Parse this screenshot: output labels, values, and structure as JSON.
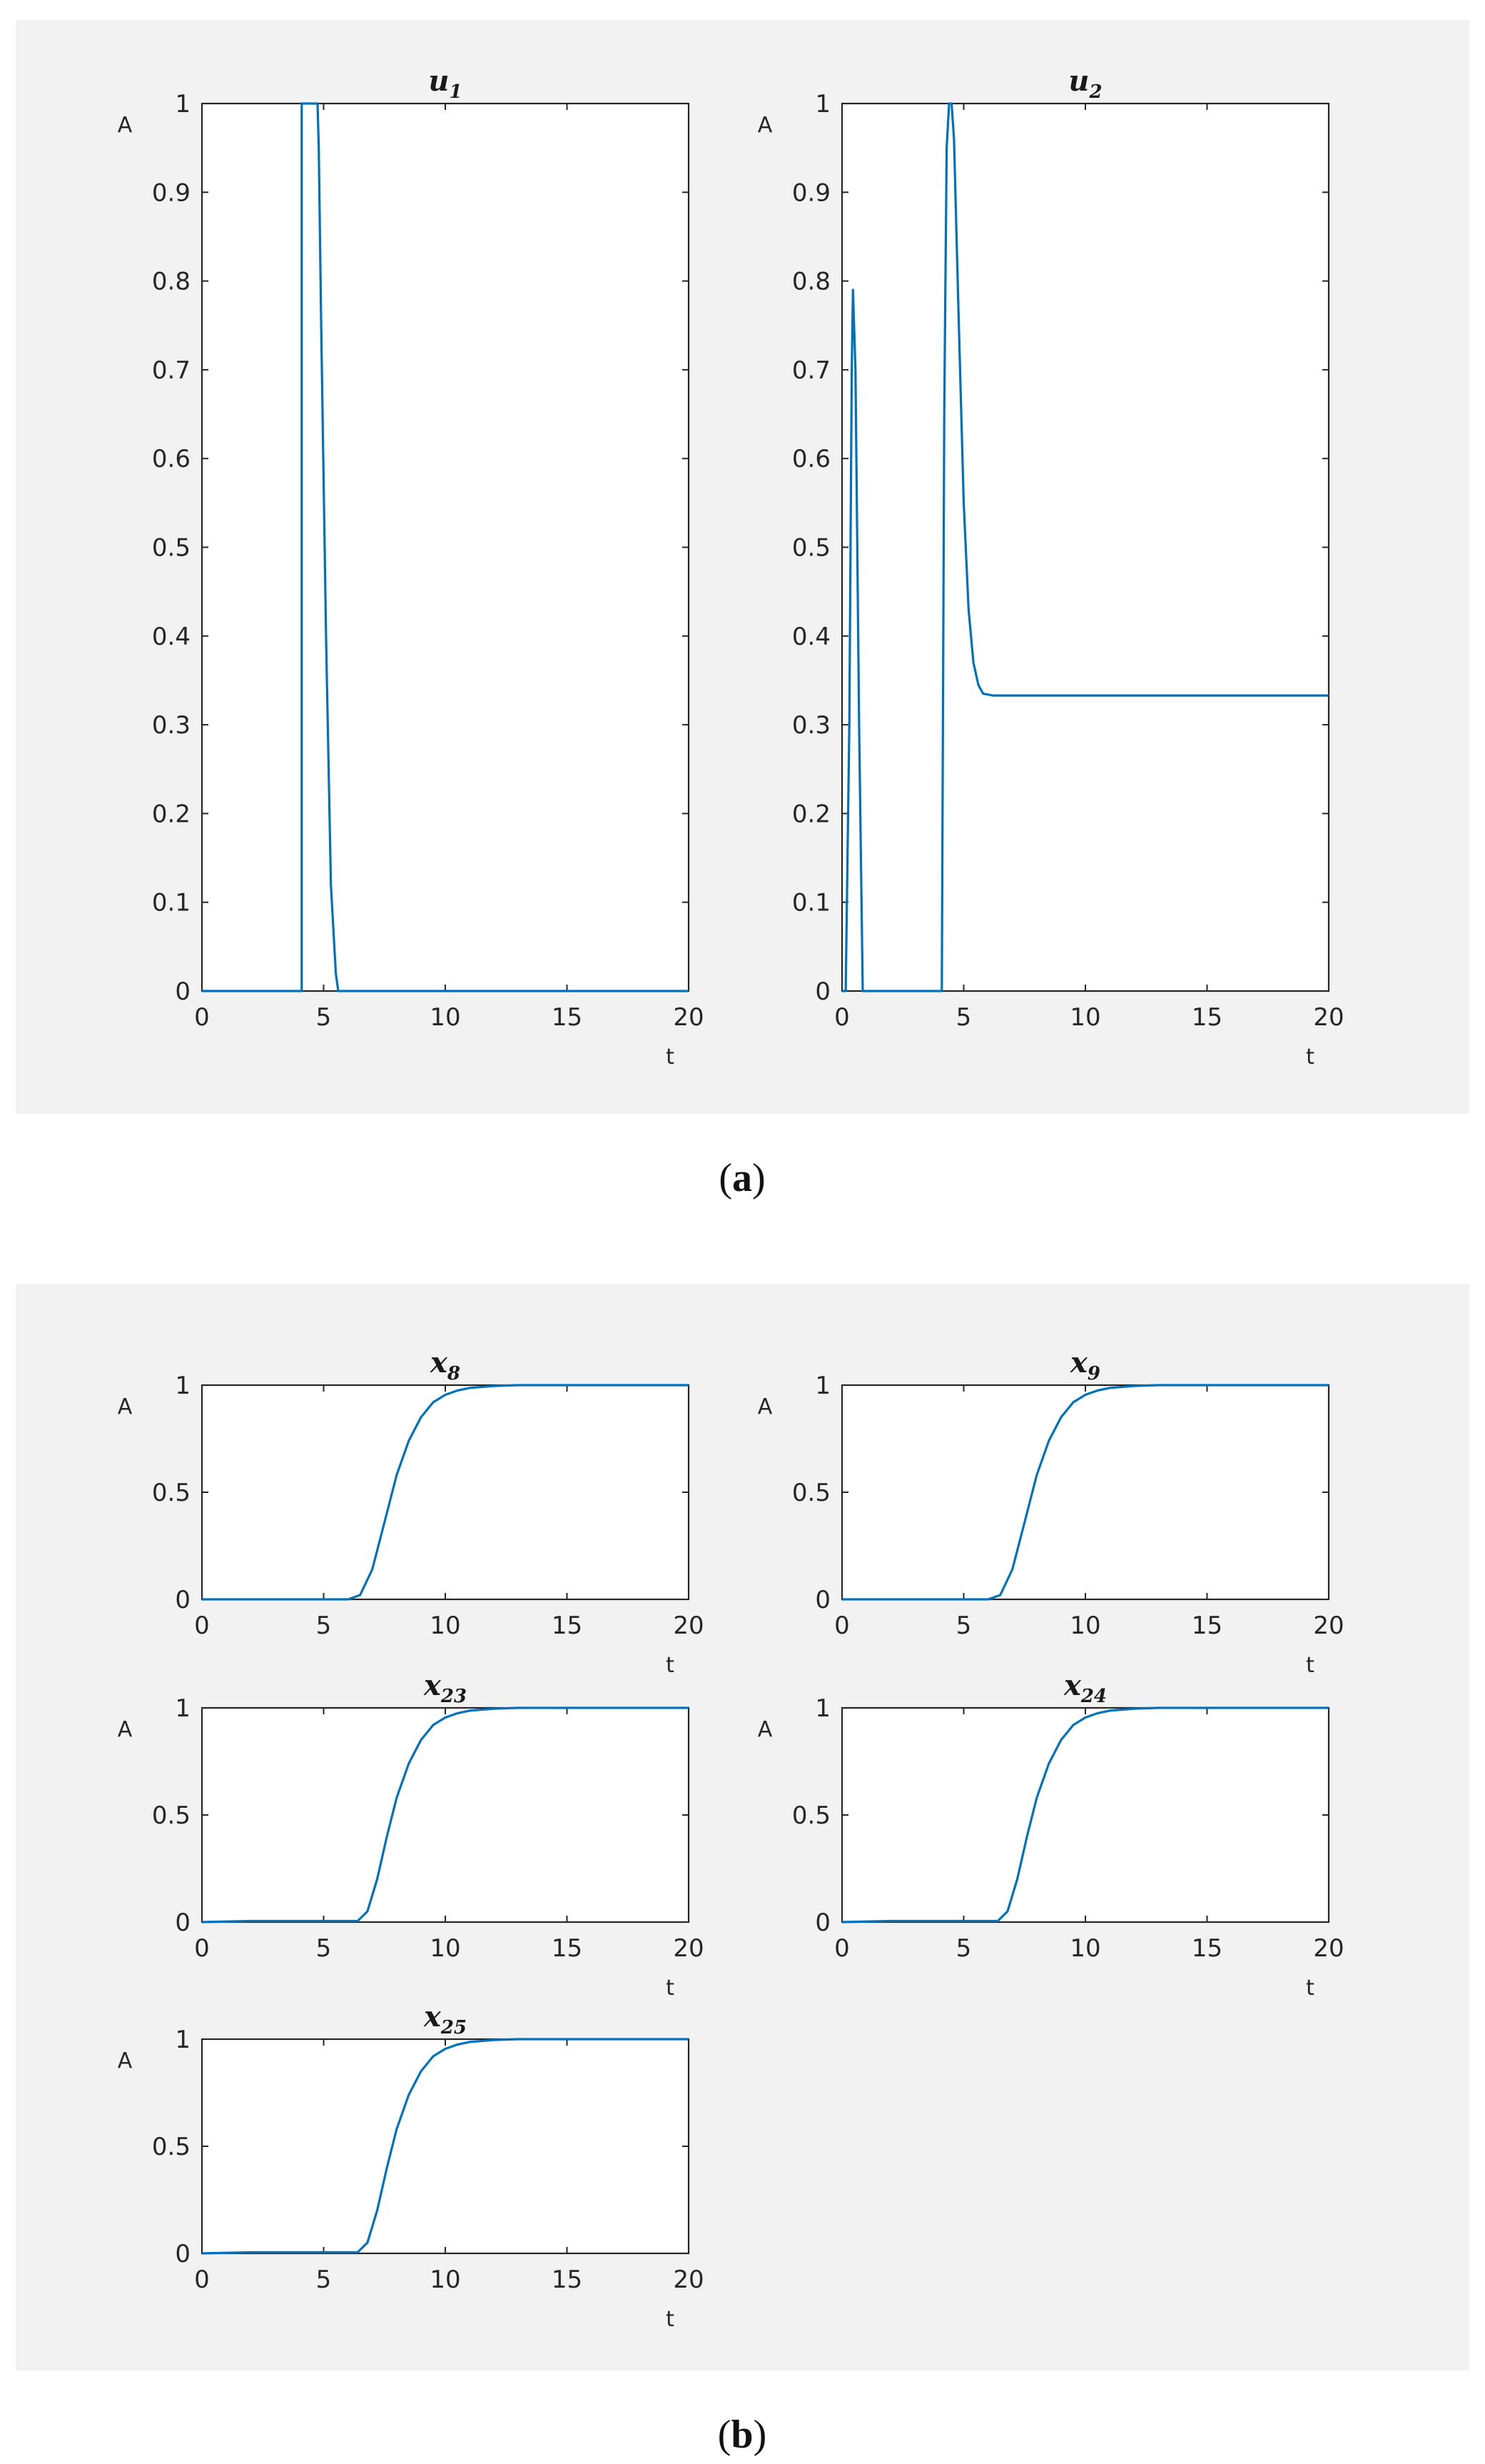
{
  "captions": {
    "a": "a",
    "b": "b"
  },
  "colors": {
    "line": "#0072BD",
    "panel": "#f2f2f2",
    "axes": "#262626"
  },
  "chart_data": [
    {
      "id": "u1",
      "group": "a",
      "type": "line",
      "title": "u",
      "title_sub": "1",
      "xlabel": "t",
      "ylabel": "A",
      "xlim": [
        0,
        20
      ],
      "ylim": [
        0,
        1
      ],
      "xticks": [
        0,
        5,
        10,
        15,
        20
      ],
      "yticks": [
        0,
        0.1,
        0.2,
        0.3,
        0.4,
        0.5,
        0.6,
        0.7,
        0.8,
        0.9,
        1
      ],
      "ytick_labels": [
        "0",
        "0.1",
        "0.2",
        "0.3",
        "0.4",
        "0.5",
        "0.6",
        "0.7",
        "0.8",
        "0.9",
        "1"
      ],
      "series": [
        {
          "x": [
            0,
            4.1,
            4.1,
            4.2,
            4.4,
            4.6,
            4.75,
            4.8,
            4.9,
            5.1,
            5.3,
            5.5,
            5.6,
            20
          ],
          "y": [
            0,
            0,
            1,
            1,
            1,
            1,
            1,
            0.95,
            0.75,
            0.4,
            0.12,
            0.02,
            0,
            0
          ]
        }
      ]
    },
    {
      "id": "u2",
      "group": "a",
      "type": "line",
      "title": "u",
      "title_sub": "2",
      "xlabel": "t",
      "ylabel": "A",
      "xlim": [
        0,
        20
      ],
      "ylim": [
        0,
        1
      ],
      "xticks": [
        0,
        5,
        10,
        15,
        20
      ],
      "yticks": [
        0,
        0.1,
        0.2,
        0.3,
        0.4,
        0.5,
        0.6,
        0.7,
        0.8,
        0.9,
        1
      ],
      "ytick_labels": [
        "0",
        "0.1",
        "0.2",
        "0.3",
        "0.4",
        "0.5",
        "0.6",
        "0.7",
        "0.8",
        "0.9",
        "1"
      ],
      "series": [
        {
          "x": [
            0,
            0.15,
            0.3,
            0.4,
            0.45,
            0.55,
            0.7,
            0.85,
            4.1,
            4.2,
            4.3,
            4.4,
            4.5,
            4.6,
            4.8,
            5.0,
            5.2,
            5.4,
            5.6,
            5.8,
            6.2,
            20
          ],
          "y": [
            0,
            0,
            0.3,
            0.7,
            0.79,
            0.7,
            0.3,
            0,
            0,
            0.65,
            0.95,
            1.0,
            1.0,
            0.96,
            0.75,
            0.55,
            0.43,
            0.37,
            0.345,
            0.335,
            0.333,
            0.333
          ]
        }
      ]
    },
    {
      "id": "x8",
      "group": "b",
      "type": "line",
      "title": "x",
      "title_sub": "8",
      "xlabel": "t",
      "ylabel": "A",
      "xlim": [
        0,
        20
      ],
      "ylim": [
        0,
        1
      ],
      "xticks": [
        0,
        5,
        10,
        15,
        20
      ],
      "yticks": [
        0,
        0.5,
        1
      ],
      "ytick_labels": [
        "0",
        "0.5",
        "1"
      ],
      "series": [
        {
          "x": [
            0,
            6.0,
            6.5,
            7.0,
            7.5,
            8.0,
            8.5,
            9.0,
            9.5,
            10.0,
            10.5,
            11.0,
            12.0,
            13.0,
            20
          ],
          "y": [
            0,
            0,
            0.02,
            0.14,
            0.36,
            0.58,
            0.74,
            0.85,
            0.92,
            0.955,
            0.975,
            0.987,
            0.996,
            1.0,
            1.0
          ]
        }
      ]
    },
    {
      "id": "x9",
      "group": "b",
      "type": "line",
      "title": "x",
      "title_sub": "9",
      "xlabel": "t",
      "ylabel": "A",
      "xlim": [
        0,
        20
      ],
      "ylim": [
        0,
        1
      ],
      "xticks": [
        0,
        5,
        10,
        15,
        20
      ],
      "yticks": [
        0,
        0.5,
        1
      ],
      "ytick_labels": [
        "0",
        "0.5",
        "1"
      ],
      "series": [
        {
          "x": [
            0,
            6.0,
            6.5,
            7.0,
            7.5,
            8.0,
            8.5,
            9.0,
            9.5,
            10.0,
            10.5,
            11.0,
            12.0,
            13.0,
            20
          ],
          "y": [
            0,
            0,
            0.02,
            0.14,
            0.36,
            0.58,
            0.74,
            0.85,
            0.92,
            0.955,
            0.975,
            0.987,
            0.996,
            1.0,
            1.0
          ]
        }
      ]
    },
    {
      "id": "x23",
      "group": "b",
      "type": "line",
      "title": "x",
      "title_sub": "23",
      "xlabel": "t",
      "ylabel": "A",
      "xlim": [
        0,
        20
      ],
      "ylim": [
        0,
        1
      ],
      "xticks": [
        0,
        5,
        10,
        15,
        20
      ],
      "yticks": [
        0,
        0.5,
        1
      ],
      "ytick_labels": [
        "0",
        "0.5",
        "1"
      ],
      "series": [
        {
          "x": [
            0,
            2.0,
            4.0,
            6.4,
            6.8,
            7.2,
            7.6,
            8.0,
            8.5,
            9.0,
            9.5,
            10.0,
            10.5,
            11.0,
            12.0,
            13.0,
            20
          ],
          "y": [
            0,
            0.005,
            0.005,
            0.005,
            0.05,
            0.2,
            0.4,
            0.58,
            0.74,
            0.85,
            0.92,
            0.955,
            0.975,
            0.987,
            0.996,
            1.0,
            1.0
          ]
        }
      ]
    },
    {
      "id": "x24",
      "group": "b",
      "type": "line",
      "title": "x",
      "title_sub": "24",
      "xlabel": "t",
      "ylabel": "A",
      "xlim": [
        0,
        20
      ],
      "ylim": [
        0,
        1
      ],
      "xticks": [
        0,
        5,
        10,
        15,
        20
      ],
      "yticks": [
        0,
        0.5,
        1
      ],
      "ytick_labels": [
        "0",
        "0.5",
        "1"
      ],
      "series": [
        {
          "x": [
            0,
            2.0,
            4.0,
            6.4,
            6.8,
            7.2,
            7.6,
            8.0,
            8.5,
            9.0,
            9.5,
            10.0,
            10.5,
            11.0,
            12.0,
            13.0,
            20
          ],
          "y": [
            0,
            0.005,
            0.005,
            0.005,
            0.05,
            0.2,
            0.4,
            0.58,
            0.74,
            0.85,
            0.92,
            0.955,
            0.975,
            0.987,
            0.996,
            1.0,
            1.0
          ]
        }
      ]
    },
    {
      "id": "x25",
      "group": "b",
      "type": "line",
      "title": "x",
      "title_sub": "25",
      "xlabel": "t",
      "ylabel": "A",
      "xlim": [
        0,
        20
      ],
      "ylim": [
        0,
        1
      ],
      "xticks": [
        0,
        5,
        10,
        15,
        20
      ],
      "yticks": [
        0,
        0.5,
        1
      ],
      "ytick_labels": [
        "0",
        "0.5",
        "1"
      ],
      "series": [
        {
          "x": [
            0,
            2.0,
            4.0,
            6.4,
            6.8,
            7.2,
            7.6,
            8.0,
            8.5,
            9.0,
            9.5,
            10.0,
            10.5,
            11.0,
            12.0,
            13.0,
            20
          ],
          "y": [
            0,
            0.005,
            0.005,
            0.005,
            0.05,
            0.2,
            0.4,
            0.58,
            0.74,
            0.85,
            0.92,
            0.955,
            0.975,
            0.987,
            0.996,
            1.0,
            1.0
          ]
        }
      ]
    }
  ]
}
